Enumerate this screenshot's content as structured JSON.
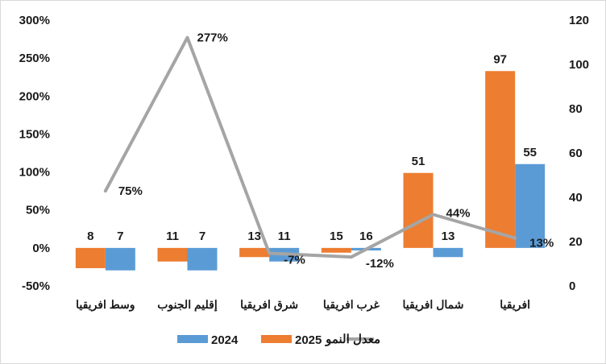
{
  "chart_data": {
    "type": "bar",
    "categories": [
      "وسط افريقيا",
      "إقليم الجنوب",
      "شرق افريقيا",
      "غرب افريقيا",
      "شمال افريقيا",
      "افريقيا"
    ],
    "series": [
      {
        "name": "2025",
        "type": "bar",
        "axis": "right",
        "color": "#ED7D31",
        "values": [
          8,
          11,
          13,
          15,
          51,
          97
        ],
        "labels": [
          "8",
          "11",
          "13",
          "15",
          "51",
          "97"
        ]
      },
      {
        "name": "2024",
        "type": "bar",
        "axis": "right",
        "color": "#5B9BD5",
        "values": [
          7,
          7,
          11,
          16,
          13,
          55
        ],
        "labels": [
          "7",
          "7",
          "11",
          "16",
          "13",
          "55"
        ]
      },
      {
        "name": "معدل النمو",
        "type": "line",
        "axis": "left",
        "color": "#A5A5A5",
        "values": [
          75,
          277,
          -7,
          -12,
          44,
          13
        ],
        "labels": [
          "75%",
          "277%",
          "-7%",
          "-12%",
          "44%",
          "13%"
        ]
      }
    ],
    "left_axis": {
      "min": -50,
      "max": 300,
      "step": 50,
      "tick_labels": [
        "-50%",
        "0%",
        "50%",
        "100%",
        "150%",
        "200%",
        "250%",
        "300%"
      ]
    },
    "right_axis": {
      "min": 0,
      "max": 120,
      "step": 20,
      "tick_labels": [
        "0",
        "20",
        "40",
        "60",
        "80",
        "100",
        "120"
      ]
    },
    "legend": {
      "position": "bottom",
      "items": [
        "2024",
        "2025",
        "معدل النمو"
      ]
    },
    "grid": false
  }
}
